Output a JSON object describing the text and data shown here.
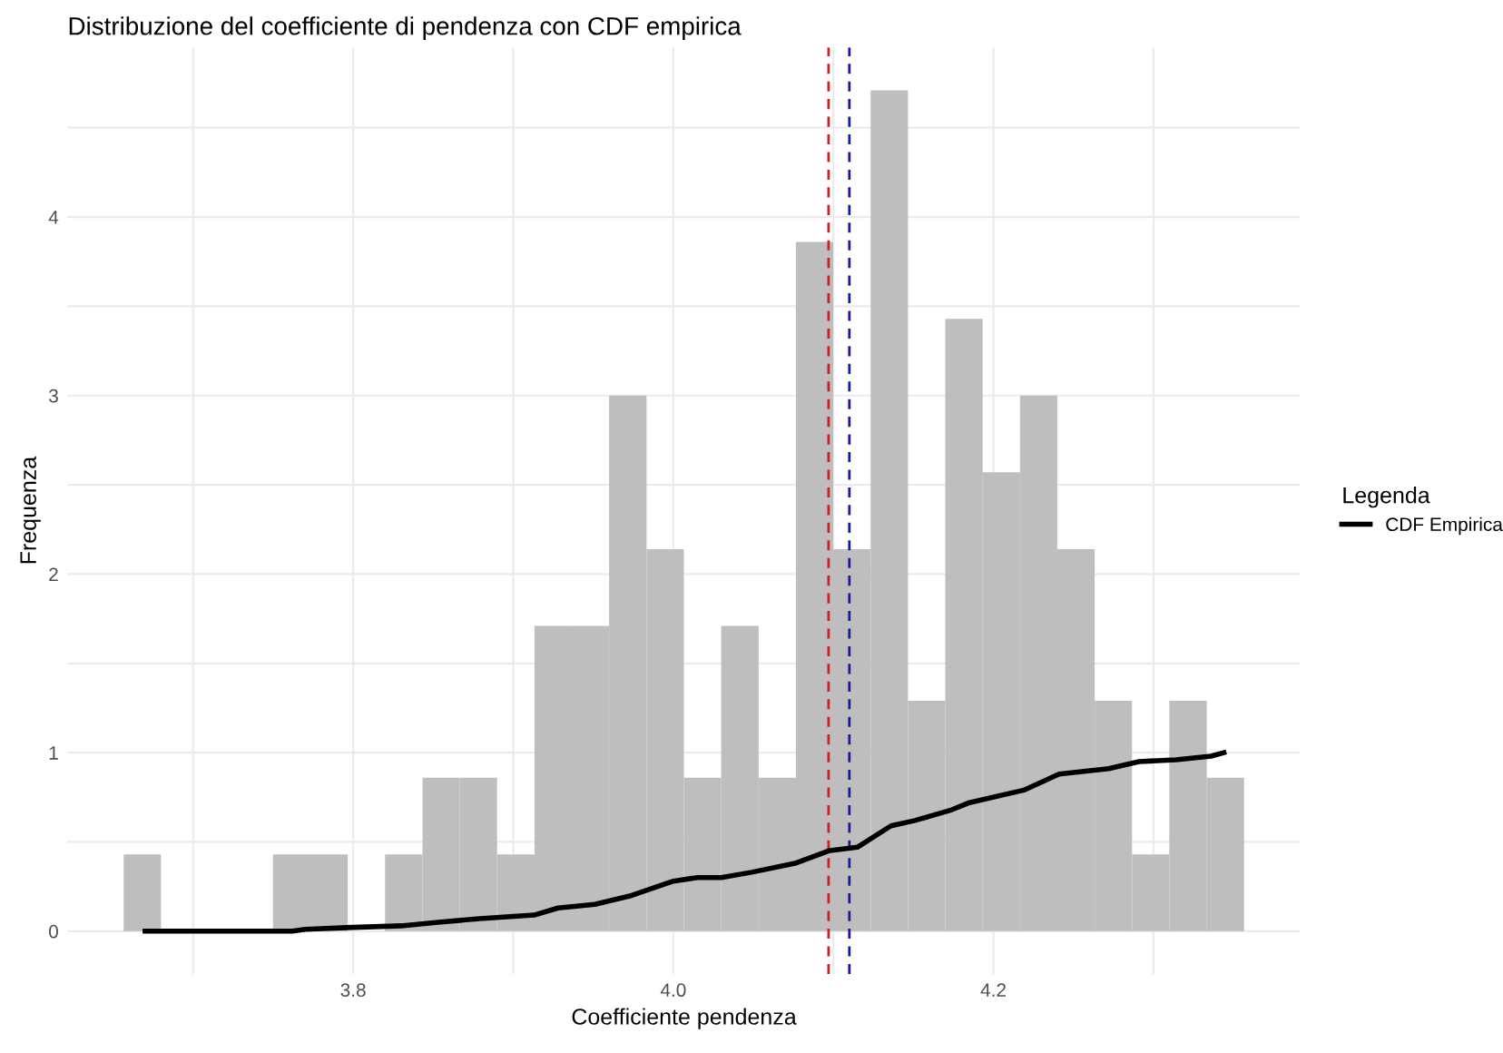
{
  "chart_data": {
    "type": "histogram",
    "title": "Distribuzione del coefficiente di pendenza con CDF empirica",
    "xlabel": "Coefficiente pendenza",
    "ylabel": "Frequenza",
    "legend_title": "Legenda",
    "bins": [
      3.6566,
      3.6799,
      3.7033,
      3.7266,
      3.7499,
      3.7733,
      3.7966,
      3.8199,
      3.8433,
      3.8666,
      3.8899,
      3.9133,
      3.9366,
      3.9599,
      3.9833,
      4.0066,
      4.0299,
      4.0533,
      4.0766,
      4.0999,
      4.1233,
      4.1466,
      4.1699,
      4.1933,
      4.2166,
      4.2399,
      4.2633,
      4.2866,
      4.3099,
      4.3333,
      4.3566
    ],
    "values": [
      0.43,
      0,
      0,
      0,
      0.43,
      0.43,
      0,
      0.43,
      0.86,
      0.86,
      0.43,
      1.71,
      1.71,
      3.0,
      2.14,
      0.86,
      1.71,
      0.86,
      3.86,
      2.14,
      4.71,
      1.29,
      3.43,
      2.57,
      3.0,
      2.14,
      1.29,
      0.43,
      1.29,
      0.86
    ],
    "color": "#bebebe",
    "series": [
      {
        "type": "line",
        "name": "CDF Empirica",
        "color": "#000000",
        "x": [
          3.67,
          3.762,
          3.77,
          3.796,
          3.83,
          3.853,
          3.879,
          3.913,
          3.928,
          3.951,
          3.974,
          4.0,
          4.015,
          4.03,
          4.049,
          4.076,
          4.097,
          4.115,
          4.136,
          4.151,
          4.174,
          4.185,
          4.219,
          4.241,
          4.272,
          4.291,
          4.314,
          4.336,
          4.344
        ],
        "values": [
          0,
          0,
          0.01,
          0.02,
          0.03,
          0.05,
          0.07,
          0.09,
          0.13,
          0.15,
          0.2,
          0.28,
          0.3,
          0.3,
          0.33,
          0.38,
          0.45,
          0.47,
          0.59,
          0.62,
          0.68,
          0.72,
          0.79,
          0.88,
          0.91,
          0.95,
          0.96,
          0.98,
          1.0
        ]
      }
    ],
    "ref_lines": [
      {
        "axis": "x",
        "value": 4.097,
        "color": "#cc2020",
        "line_style": "dashed"
      },
      {
        "axis": "x",
        "value": 4.11,
        "color": "#1a1a9a",
        "line_style": "dashed"
      }
    ],
    "xlim": [
      3.6216,
      4.3916
    ],
    "ylim": [
      -0.24,
      4.95
    ],
    "xticks": [
      {
        "value": 3.7,
        "label": null
      },
      {
        "value": 3.8,
        "label": "3.8"
      },
      {
        "value": 3.9,
        "label": null
      },
      {
        "value": 4.0,
        "label": "4.0"
      },
      {
        "value": 4.1,
        "label": null
      },
      {
        "value": 4.2,
        "label": "4.2"
      },
      {
        "value": 4.3,
        "label": null
      }
    ],
    "yticks": [
      0,
      {
        "value": 0.5,
        "label": null
      },
      1,
      {
        "value": 1.5,
        "label": null
      },
      2,
      {
        "value": 2.5,
        "label": null
      },
      3,
      {
        "value": 3.5,
        "label": null
      },
      4,
      {
        "value": 4.5,
        "label": null
      }
    ],
    "grid": true,
    "legend": "right",
    "line_style": "solid",
    "marker": "none"
  }
}
